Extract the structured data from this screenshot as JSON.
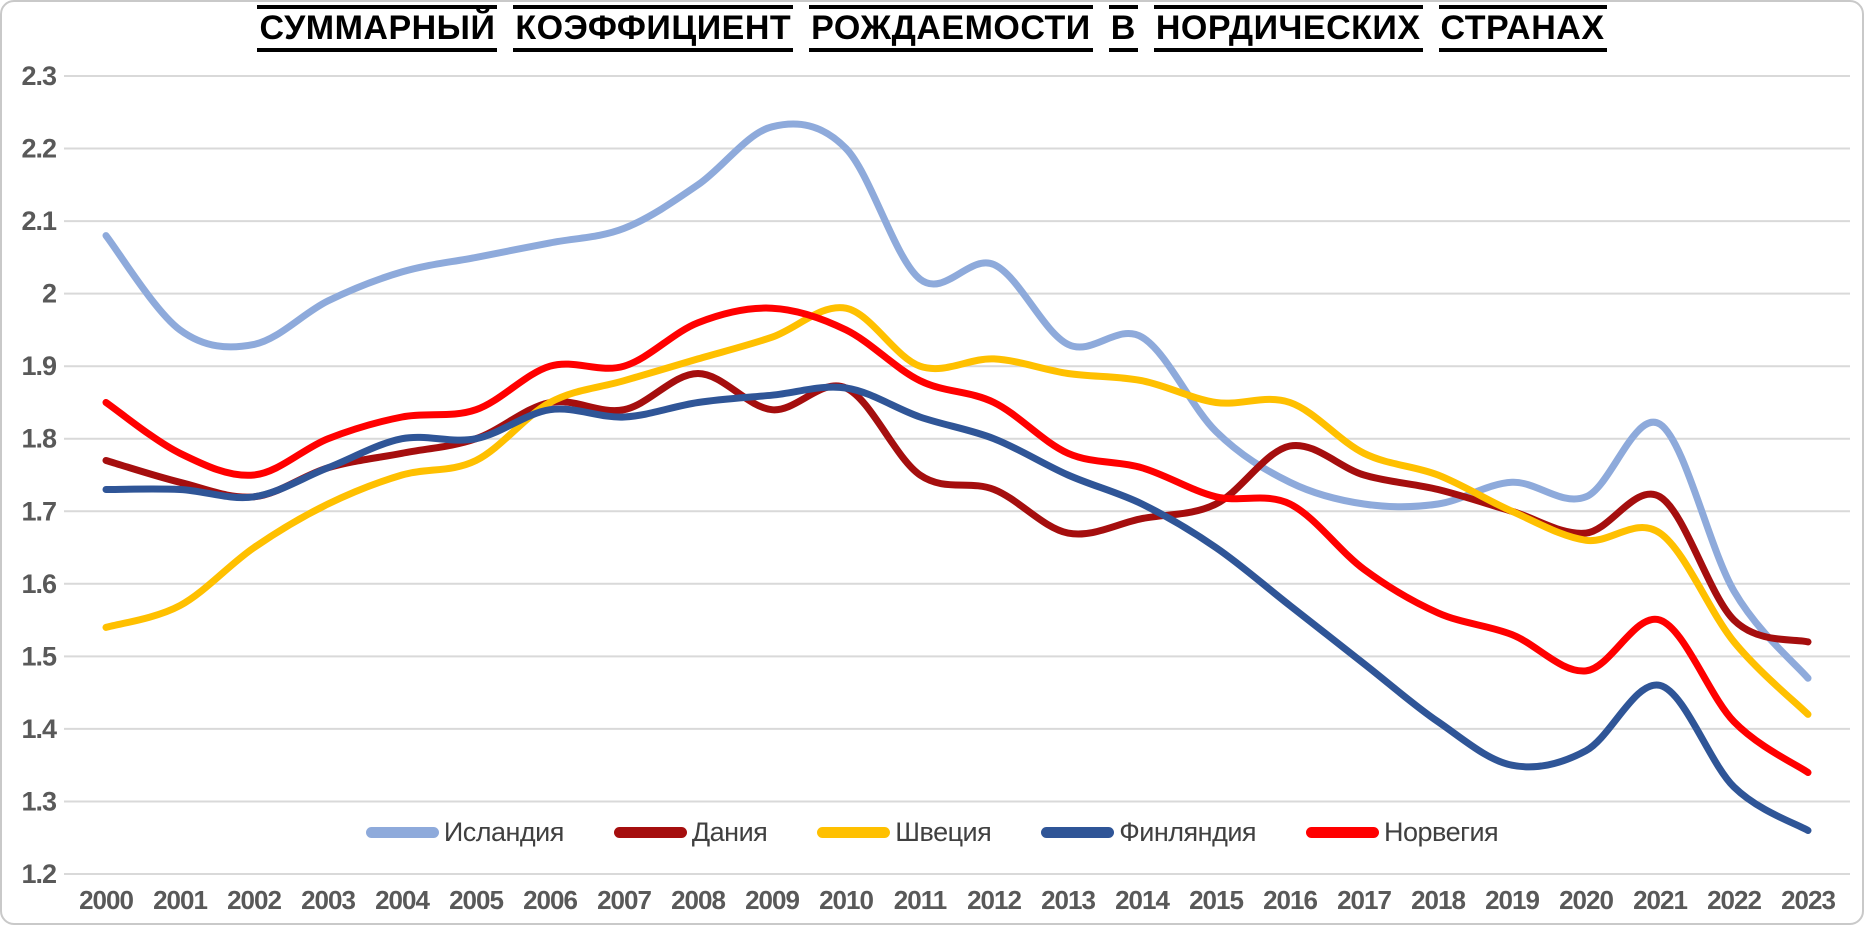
{
  "title": {
    "text": "СУММАРНЫЙ КОЭФФИЦИЕНТ РОЖДАЕМОСТИ В НОРДИЧЕСКИХ СТРАНАХ"
  },
  "chart_data": {
    "type": "line",
    "title": "СУММАРНЫЙ КОЭФФИЦИЕНТ РОЖДАЕМОСТИ В НОРДИЧЕСКИХ СТРАНАХ",
    "smooth": true,
    "grid": "horizontal",
    "legend_position": "bottom",
    "xlabel": "",
    "ylabel": "",
    "ylim": [
      1.2,
      2.3
    ],
    "ytick_step": 0.1,
    "y_tick_labels": [
      "2.3",
      "2.2",
      "2.1",
      "2",
      "1.9",
      "1.8",
      "1.7",
      "1.6",
      "1.5",
      "1.4",
      "1.3",
      "1.2"
    ],
    "x": [
      2000,
      2001,
      2002,
      2003,
      2004,
      2005,
      2006,
      2007,
      2008,
      2009,
      2010,
      2011,
      2012,
      2013,
      2014,
      2015,
      2016,
      2017,
      2018,
      2019,
      2020,
      2021,
      2022,
      2023
    ],
    "series": [
      {
        "id": "iceland",
        "name": "Исландия",
        "color": "#8EAADB",
        "values": [
          2.08,
          1.95,
          1.93,
          1.99,
          2.03,
          2.05,
          2.07,
          2.09,
          2.15,
          2.23,
          2.2,
          2.02,
          2.04,
          1.93,
          1.94,
          1.81,
          1.74,
          1.71,
          1.71,
          1.74,
          1.72,
          1.82,
          1.59,
          1.47
        ]
      },
      {
        "id": "denmark",
        "name": "Дания",
        "color": "#A50E0E",
        "values": [
          1.77,
          1.74,
          1.72,
          1.76,
          1.78,
          1.8,
          1.85,
          1.84,
          1.89,
          1.84,
          1.87,
          1.75,
          1.73,
          1.67,
          1.69,
          1.71,
          1.79,
          1.75,
          1.73,
          1.7,
          1.67,
          1.72,
          1.55,
          1.52
        ]
      },
      {
        "id": "sweden",
        "name": "Швеция",
        "color": "#FFC000",
        "values": [
          1.54,
          1.57,
          1.65,
          1.71,
          1.75,
          1.77,
          1.85,
          1.88,
          1.91,
          1.94,
          1.98,
          1.9,
          1.91,
          1.89,
          1.88,
          1.85,
          1.85,
          1.78,
          1.75,
          1.7,
          1.66,
          1.67,
          1.52,
          1.42
        ]
      },
      {
        "id": "finland",
        "name": "Финляндия",
        "color": "#2F5597",
        "values": [
          1.73,
          1.73,
          1.72,
          1.76,
          1.8,
          1.8,
          1.84,
          1.83,
          1.85,
          1.86,
          1.87,
          1.83,
          1.8,
          1.75,
          1.71,
          1.65,
          1.57,
          1.49,
          1.41,
          1.35,
          1.37,
          1.46,
          1.32,
          1.26
        ]
      },
      {
        "id": "norway",
        "name": "Норвегия",
        "color": "#FF0000",
        "values": [
          1.85,
          1.78,
          1.75,
          1.8,
          1.83,
          1.84,
          1.9,
          1.9,
          1.96,
          1.98,
          1.95,
          1.88,
          1.85,
          1.78,
          1.76,
          1.72,
          1.71,
          1.62,
          1.56,
          1.53,
          1.48,
          1.55,
          1.41,
          1.34
        ]
      }
    ]
  },
  "style": {
    "grid_color": "#D9D9D9",
    "axis_text_color": "#595959",
    "legend_text_color": "#404040",
    "title_color": "#000000",
    "border_color": "#C9C9C9",
    "background": "#FFFFFF"
  }
}
